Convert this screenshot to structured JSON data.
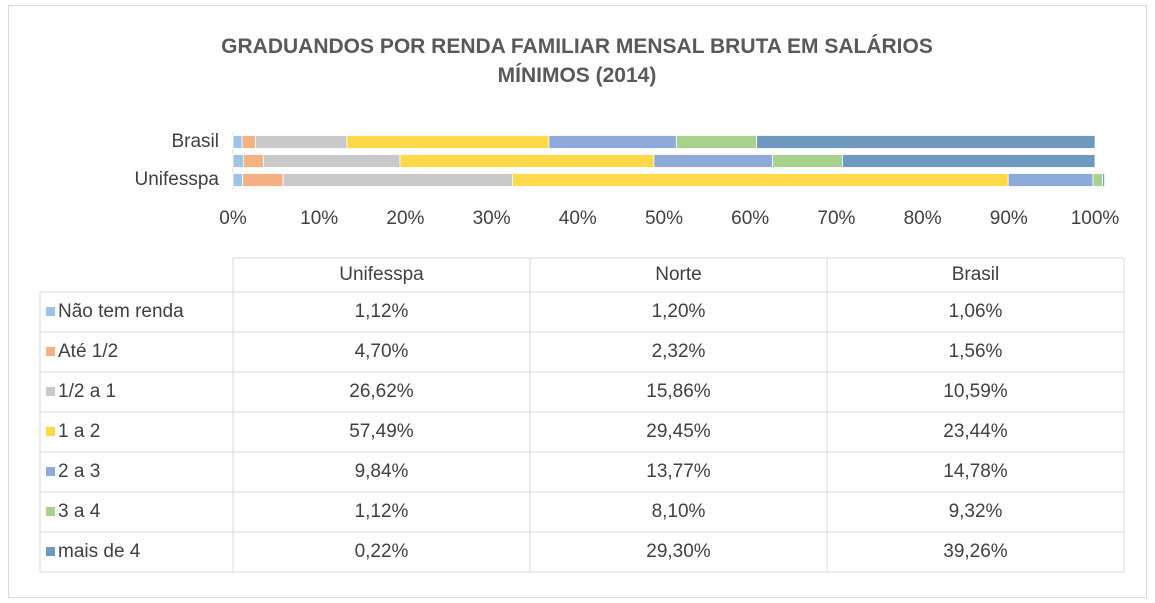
{
  "chart_data": {
    "type": "stacked_bar_horizontal",
    "title": "GRADUANDOS POR RENDA FAMILIAR MENSAL BRUTA EM SALÁRIOS MÍNIMOS (2014)",
    "categories": [
      "Unifesspa",
      "Norte",
      "Brasil"
    ],
    "axis_labels": [
      "Unifesspa",
      null,
      "Brasil"
    ],
    "xlim": [
      0,
      100
    ],
    "xticks": [
      {
        "value": 0,
        "label": "0%"
      },
      {
        "value": 10,
        "label": "10%"
      },
      {
        "value": 20,
        "label": "20%"
      },
      {
        "value": 30,
        "label": "30%"
      },
      {
        "value": 40,
        "label": "40%"
      },
      {
        "value": 50,
        "label": "50%"
      },
      {
        "value": 60,
        "label": "60%"
      },
      {
        "value": 70,
        "label": "70%"
      },
      {
        "value": 80,
        "label": "80%"
      },
      {
        "value": 90,
        "label": "90%"
      },
      {
        "value": 100,
        "label": "100%"
      }
    ],
    "series": [
      {
        "name": "Não tem renda",
        "color": "#9dc3e6",
        "values": [
          1.12,
          1.2,
          1.06
        ],
        "value_labels": [
          "1,12%",
          "1,20%",
          "1,06%"
        ]
      },
      {
        "name": "Até 1/2",
        "color": "#f4b183",
        "values": [
          4.7,
          2.32,
          1.56
        ],
        "value_labels": [
          "4,70%",
          "2,32%",
          "1,56%"
        ]
      },
      {
        "name": "1/2 a 1",
        "color": "#c9c9c9",
        "values": [
          26.62,
          15.86,
          10.59
        ],
        "value_labels": [
          "26,62%",
          "15,86%",
          "10,59%"
        ]
      },
      {
        "name": "1 a 2",
        "color": "#ffd94a",
        "values": [
          57.49,
          29.45,
          23.44
        ],
        "value_labels": [
          "57,49%",
          "29,45%",
          "23,44%"
        ]
      },
      {
        "name": "2 a 3",
        "color": "#8eaadb",
        "values": [
          9.84,
          13.77,
          14.78
        ],
        "value_labels": [
          "9,84%",
          "13,77%",
          "14,78%"
        ]
      },
      {
        "name": "3 a 4",
        "color": "#a9d18e",
        "values": [
          1.12,
          8.1,
          9.32
        ],
        "value_labels": [
          "1,12%",
          "8,10%",
          "9,32%"
        ]
      },
      {
        "name": "mais de 4",
        "color": "#6e9ac0",
        "values": [
          0.22,
          29.3,
          39.26
        ],
        "value_labels": [
          "0,22%",
          "29,30%",
          "39,26%"
        ]
      }
    ]
  }
}
